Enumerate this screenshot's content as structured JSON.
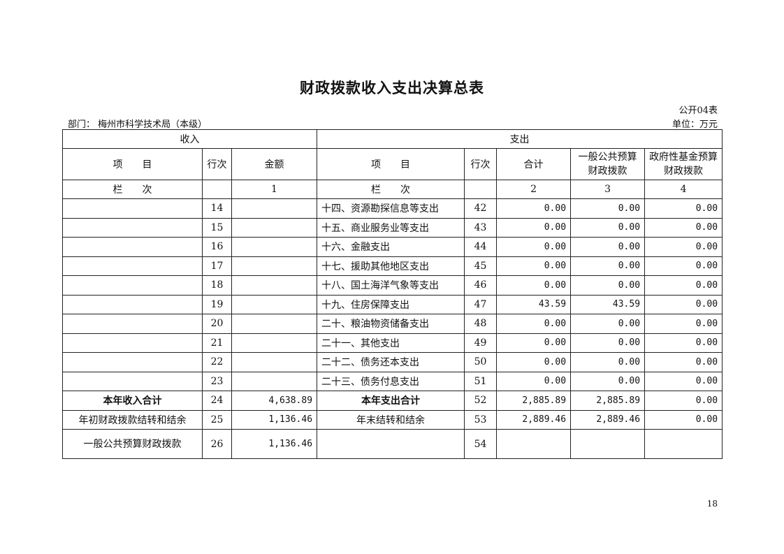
{
  "title": "财政拨款收入支出决算总表",
  "form_no": "公开04表",
  "department": "部门： 梅州市科学技术局（本级）",
  "unit": "单位：万元",
  "header": {
    "income": "收入",
    "expense": "支出",
    "item": "项　　目",
    "row_no": "行次",
    "amount": "金额",
    "total": "合计",
    "general_budget": "一般公共预算财政拨款",
    "gov_fund": "政府性基金预算财政拨款",
    "column_label": "栏　　次",
    "col1": "1",
    "col2": "2",
    "col3": "3",
    "col4": "4"
  },
  "rows": [
    {
      "in_item": "",
      "in_no": "14",
      "in_amt": "",
      "out_item": "十四、资源勘探信息等支出",
      "out_no": "42",
      "total": "0.00",
      "general": "0.00",
      "fund": "0.00"
    },
    {
      "in_item": "",
      "in_no": "15",
      "in_amt": "",
      "out_item": "十五、商业服务业等支出",
      "out_no": "43",
      "total": "0.00",
      "general": "0.00",
      "fund": "0.00"
    },
    {
      "in_item": "",
      "in_no": "16",
      "in_amt": "",
      "out_item": "十六、金融支出",
      "out_no": "44",
      "total": "0.00",
      "general": "0.00",
      "fund": "0.00"
    },
    {
      "in_item": "",
      "in_no": "17",
      "in_amt": "",
      "out_item": "十七、援助其他地区支出",
      "out_no": "45",
      "total": "0.00",
      "general": "0.00",
      "fund": "0.00"
    },
    {
      "in_item": "",
      "in_no": "18",
      "in_amt": "",
      "out_item": "十八、国土海洋气象等支出",
      "out_no": "46",
      "total": "0.00",
      "general": "0.00",
      "fund": "0.00"
    },
    {
      "in_item": "",
      "in_no": "19",
      "in_amt": "",
      "out_item": "十九、住房保障支出",
      "out_no": "47",
      "total": "43.59",
      "general": "43.59",
      "fund": "0.00"
    },
    {
      "in_item": "",
      "in_no": "20",
      "in_amt": "",
      "out_item": "二十、粮油物资储备支出",
      "out_no": "48",
      "total": "0.00",
      "general": "0.00",
      "fund": "0.00"
    },
    {
      "in_item": "",
      "in_no": "21",
      "in_amt": "",
      "out_item": "二十一、其他支出",
      "out_no": "49",
      "total": "0.00",
      "general": "0.00",
      "fund": "0.00"
    },
    {
      "in_item": "",
      "in_no": "22",
      "in_amt": "",
      "out_item": "二十二、债务还本支出",
      "out_no": "50",
      "total": "0.00",
      "general": "0.00",
      "fund": "0.00"
    },
    {
      "in_item": "",
      "in_no": "23",
      "in_amt": "",
      "out_item": "二十三、债务付息支出",
      "out_no": "51",
      "total": "0.00",
      "general": "0.00",
      "fund": "0.00"
    }
  ],
  "summary": [
    {
      "in_item": "本年收入合计",
      "in_no": "24",
      "in_amt": "4,638.89",
      "out_item": "本年支出合计",
      "out_no": "52",
      "total": "2,885.89",
      "general": "2,885.89",
      "fund": "0.00"
    },
    {
      "in_item": "年初财政拨款结转和结余",
      "in_no": "25",
      "in_amt": "1,136.46",
      "out_item": "年末结转和结余",
      "out_no": "53",
      "total": "2,889.46",
      "general": "2,889.46",
      "fund": "0.00"
    },
    {
      "in_item": "一般公共预算财政拨款",
      "in_no": "26",
      "in_amt": "1,136.46",
      "out_item": "",
      "out_no": "54",
      "total": "",
      "general": "",
      "fund": ""
    }
  ],
  "page_number": "18"
}
